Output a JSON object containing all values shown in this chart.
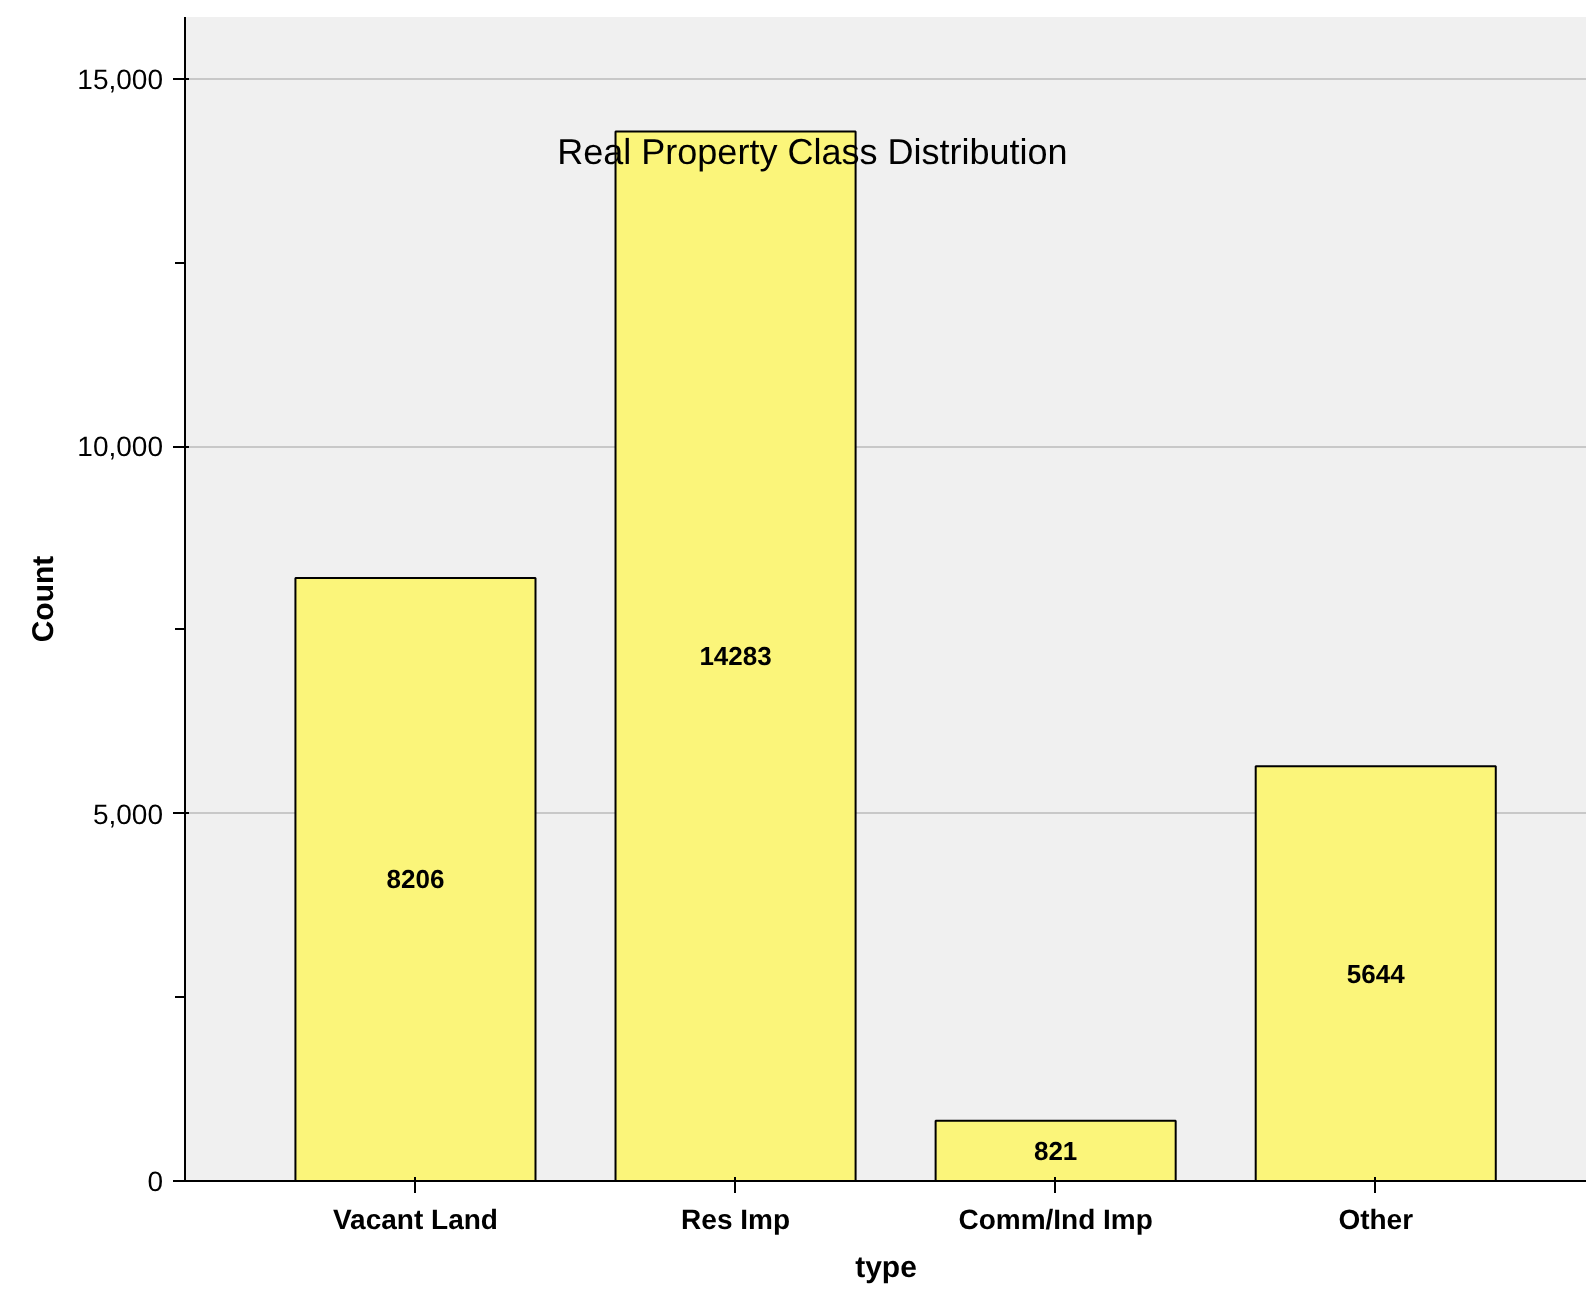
{
  "chart_data": {
    "type": "bar",
    "title": "Real Property Class Distribution",
    "xlabel": "type",
    "ylabel": "Count",
    "categories": [
      "Vacant Land",
      "Res Imp",
      "Comm/Ind Imp",
      "Other"
    ],
    "values": [
      8206,
      14283,
      821,
      5644
    ],
    "color": "#fbf57a",
    "ylim": [
      0,
      15840
    ],
    "yticks": [
      {
        "value": 0,
        "label": "0"
      },
      {
        "value": 5000,
        "label": "5,000"
      },
      {
        "value": 10000,
        "label": "10,000"
      },
      {
        "value": 15000,
        "label": "15,000"
      }
    ],
    "grid": "y",
    "data_labels": true
  }
}
